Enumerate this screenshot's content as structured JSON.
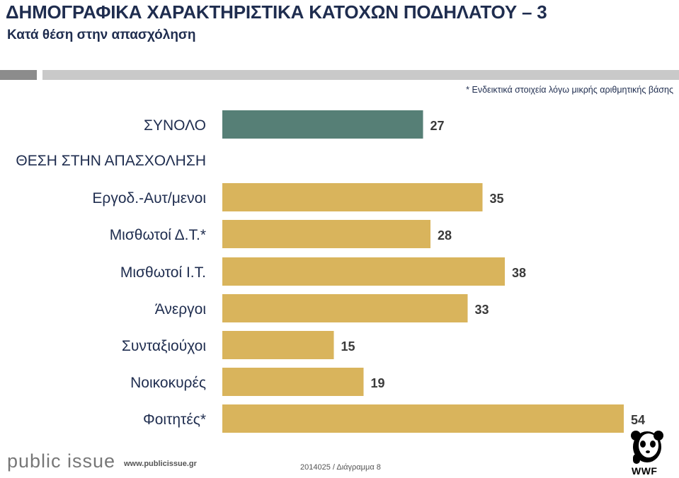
{
  "header": {
    "title": "ΔΗΜΟΓΡΑΦΙΚΑ ΧΑΡΑΚΤΗΡΙΣΤΙΚΑ ΚΑΤΟΧΩΝ ΠΟΔΗΛΑΤΟΥ – 3",
    "subtitle": "Κατά θέση στην απασχόληση"
  },
  "footnote": "* Ενδεικτικά στοιχεία λόγω μικρής αριθμητικής βάσης",
  "chart_data": {
    "type": "bar",
    "orientation": "horizontal",
    "categories": [
      "ΣΥΝΟΛΟ",
      "Εργοδ.-Αυτ/μενοι",
      "Μισθωτοί Δ.Τ.*",
      "Μισθωτοί Ι.Τ.",
      "Άνεργοι",
      "Συνταξιούχοι",
      "Νοικοκυρές",
      "Φοιτητές*"
    ],
    "values": [
      27,
      35,
      28,
      38,
      33,
      15,
      19,
      54
    ],
    "section_label": "ΘΕΣΗ ΣΤΗΝ ΑΠΑΣΧΟΛΗΣΗ",
    "colors": {
      "total": "#567f76",
      "group": "#d9b45c"
    },
    "xlim": [
      0,
      54
    ],
    "grid": false,
    "legend": "none"
  },
  "footer": {
    "logo": "public issue",
    "website": "www.publicissue.gr",
    "diagram_ref": "2014025 / Διάγραμμα 8",
    "wwf": "WWF"
  }
}
